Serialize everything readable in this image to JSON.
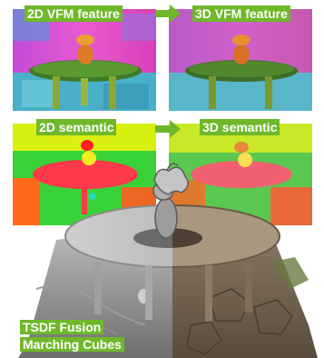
{
  "stages": {
    "vfm_2d_label": "2D VFM feature",
    "vfm_3d_label": "3D VFM feature",
    "semantic_2d_label": "2D semantic",
    "semantic_3d_label": "3D semantic",
    "fusion_line1": "TSDF Fusion",
    "fusion_line2": "Marching Cubes"
  },
  "icons": {
    "row1_arrow": "arrow-right-icon",
    "row2_arrow": "arrow-right-icon"
  },
  "colors": {
    "label_bg": "#6fb82a",
    "label_text": "#ffffff",
    "arrow": "#6fb82a",
    "semantic_table": "#ff3a4a",
    "semantic_bg_green": "#38d238",
    "semantic_bg_yellow": "#d8f010"
  }
}
